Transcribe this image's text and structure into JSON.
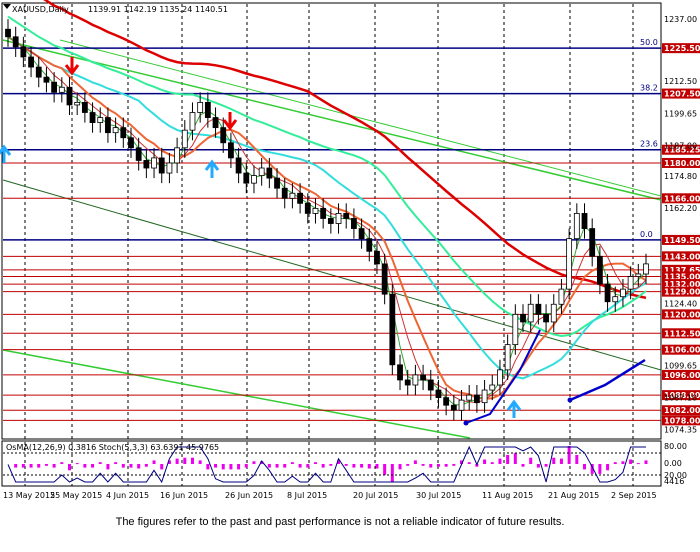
{
  "header": {
    "symbol_timeframe": "XAUUSD,Daily",
    "ohlc": "1139.91 1142.19 1135.24 1140.51",
    "indicator_text": "OsMA(12,26,9) 0.3816  Stoch(5,3,3) 63.6391 45.9765"
  },
  "disclaimer": "The figures refer to the past and past performance is not a reliable indicator of future results.",
  "colors": {
    "level_line": "#c00000",
    "label_bg": "#c00000",
    "fib_line": "#000080",
    "trend_green": "#33cc33",
    "ma_red_thick": "#dd0000",
    "ma_cyan": "#33dddd",
    "ma_teal_green": "#33ee99",
    "ma_orange": "#ee6633",
    "ma_blue": "#0000cc",
    "bull_candle": "#ffffff",
    "bear_candle": "#000000",
    "histogram": "#ee00ee",
    "arrow_down": "#ee0000",
    "arrow_up": "#22aaff"
  },
  "chart_data": {
    "type": "candlestick",
    "symbol": "XAUUSD",
    "timeframe": "Daily",
    "x_tick_labels": [
      "13 May 2015",
      "25 May 2015",
      "4 Jun 2015",
      "16 Jun 2015",
      "26 Jun 2015",
      "8 Jul 2015",
      "20 Jul 2015",
      "30 Jul 2015",
      "11 Aug 2015",
      "21 Aug 2015",
      "2 Sep 2015"
    ],
    "y_tick_labels": [
      "1237.00",
      "1212.50",
      "1199.65",
      "1187.00",
      "1174.80",
      "1162.20",
      "1124.40",
      "1099.65",
      "1087.10",
      "1074.35"
    ],
    "ylim": [
      1071,
      1243
    ],
    "price_levels": [
      {
        "value": 1225.5,
        "label": "1225.50",
        "fib": "50.0"
      },
      {
        "value": 1207.5,
        "label": "1207.50",
        "fib": "38.2"
      },
      {
        "value": 1185.25,
        "label": "1185.25",
        "fib": "23.6"
      },
      {
        "value": 1180.0,
        "label": "1180.00",
        "fib": ""
      },
      {
        "value": 1166.0,
        "label": "1166.00",
        "fib": ""
      },
      {
        "value": 1149.5,
        "label": "1149.50",
        "fib": "0.0"
      },
      {
        "value": 1143.0,
        "label": "1143.00",
        "fib": ""
      },
      {
        "value": 1137.65,
        "label": "1137.65",
        "fib": ""
      },
      {
        "value": 1135.0,
        "label": "1135.00",
        "fib": ""
      },
      {
        "value": 1132.0,
        "label": "1132.00",
        "fib": ""
      },
      {
        "value": 1129.0,
        "label": "1129.00",
        "fib": ""
      },
      {
        "value": 1120.0,
        "label": "1120.00",
        "fib": ""
      },
      {
        "value": 1112.5,
        "label": "1112.50",
        "fib": ""
      },
      {
        "value": 1106.0,
        "label": "1106.00",
        "fib": ""
      },
      {
        "value": 1096.0,
        "label": "1096.00",
        "fib": ""
      },
      {
        "value": 1088.0,
        "label": "1088.00",
        "fib": ""
      },
      {
        "value": 1082.0,
        "label": "1082.00",
        "fib": ""
      },
      {
        "value": 1078.0,
        "label": "1078.00",
        "fib": ""
      }
    ],
    "current_price": "1140.51",
    "closes": [
      1230,
      1226,
      1222,
      1218,
      1214,
      1212,
      1208,
      1210,
      1203,
      1204,
      1200,
      1196,
      1198,
      1192,
      1194,
      1190,
      1186,
      1181,
      1178,
      1182,
      1176,
      1180,
      1186,
      1193,
      1200,
      1204,
      1198,
      1194,
      1188,
      1182,
      1176,
      1172,
      1175,
      1178,
      1174,
      1170,
      1166,
      1168,
      1164,
      1160,
      1162,
      1158,
      1156,
      1160,
      1158,
      1154,
      1150,
      1145,
      1140,
      1128,
      1100,
      1094,
      1092,
      1096,
      1094,
      1090,
      1087,
      1084,
      1082,
      1086,
      1088,
      1085,
      1090,
      1092,
      1098,
      1108,
      1120,
      1117,
      1124,
      1120,
      1117,
      1124,
      1130,
      1150,
      1160,
      1154,
      1143,
      1132,
      1125,
      1127,
      1130,
      1135,
      1136,
      1140
    ],
    "osma_range": [
      -6,
      6
    ],
    "stoch_y_labels": [
      "80.00",
      "0.00",
      "20.00",
      "4416"
    ]
  }
}
